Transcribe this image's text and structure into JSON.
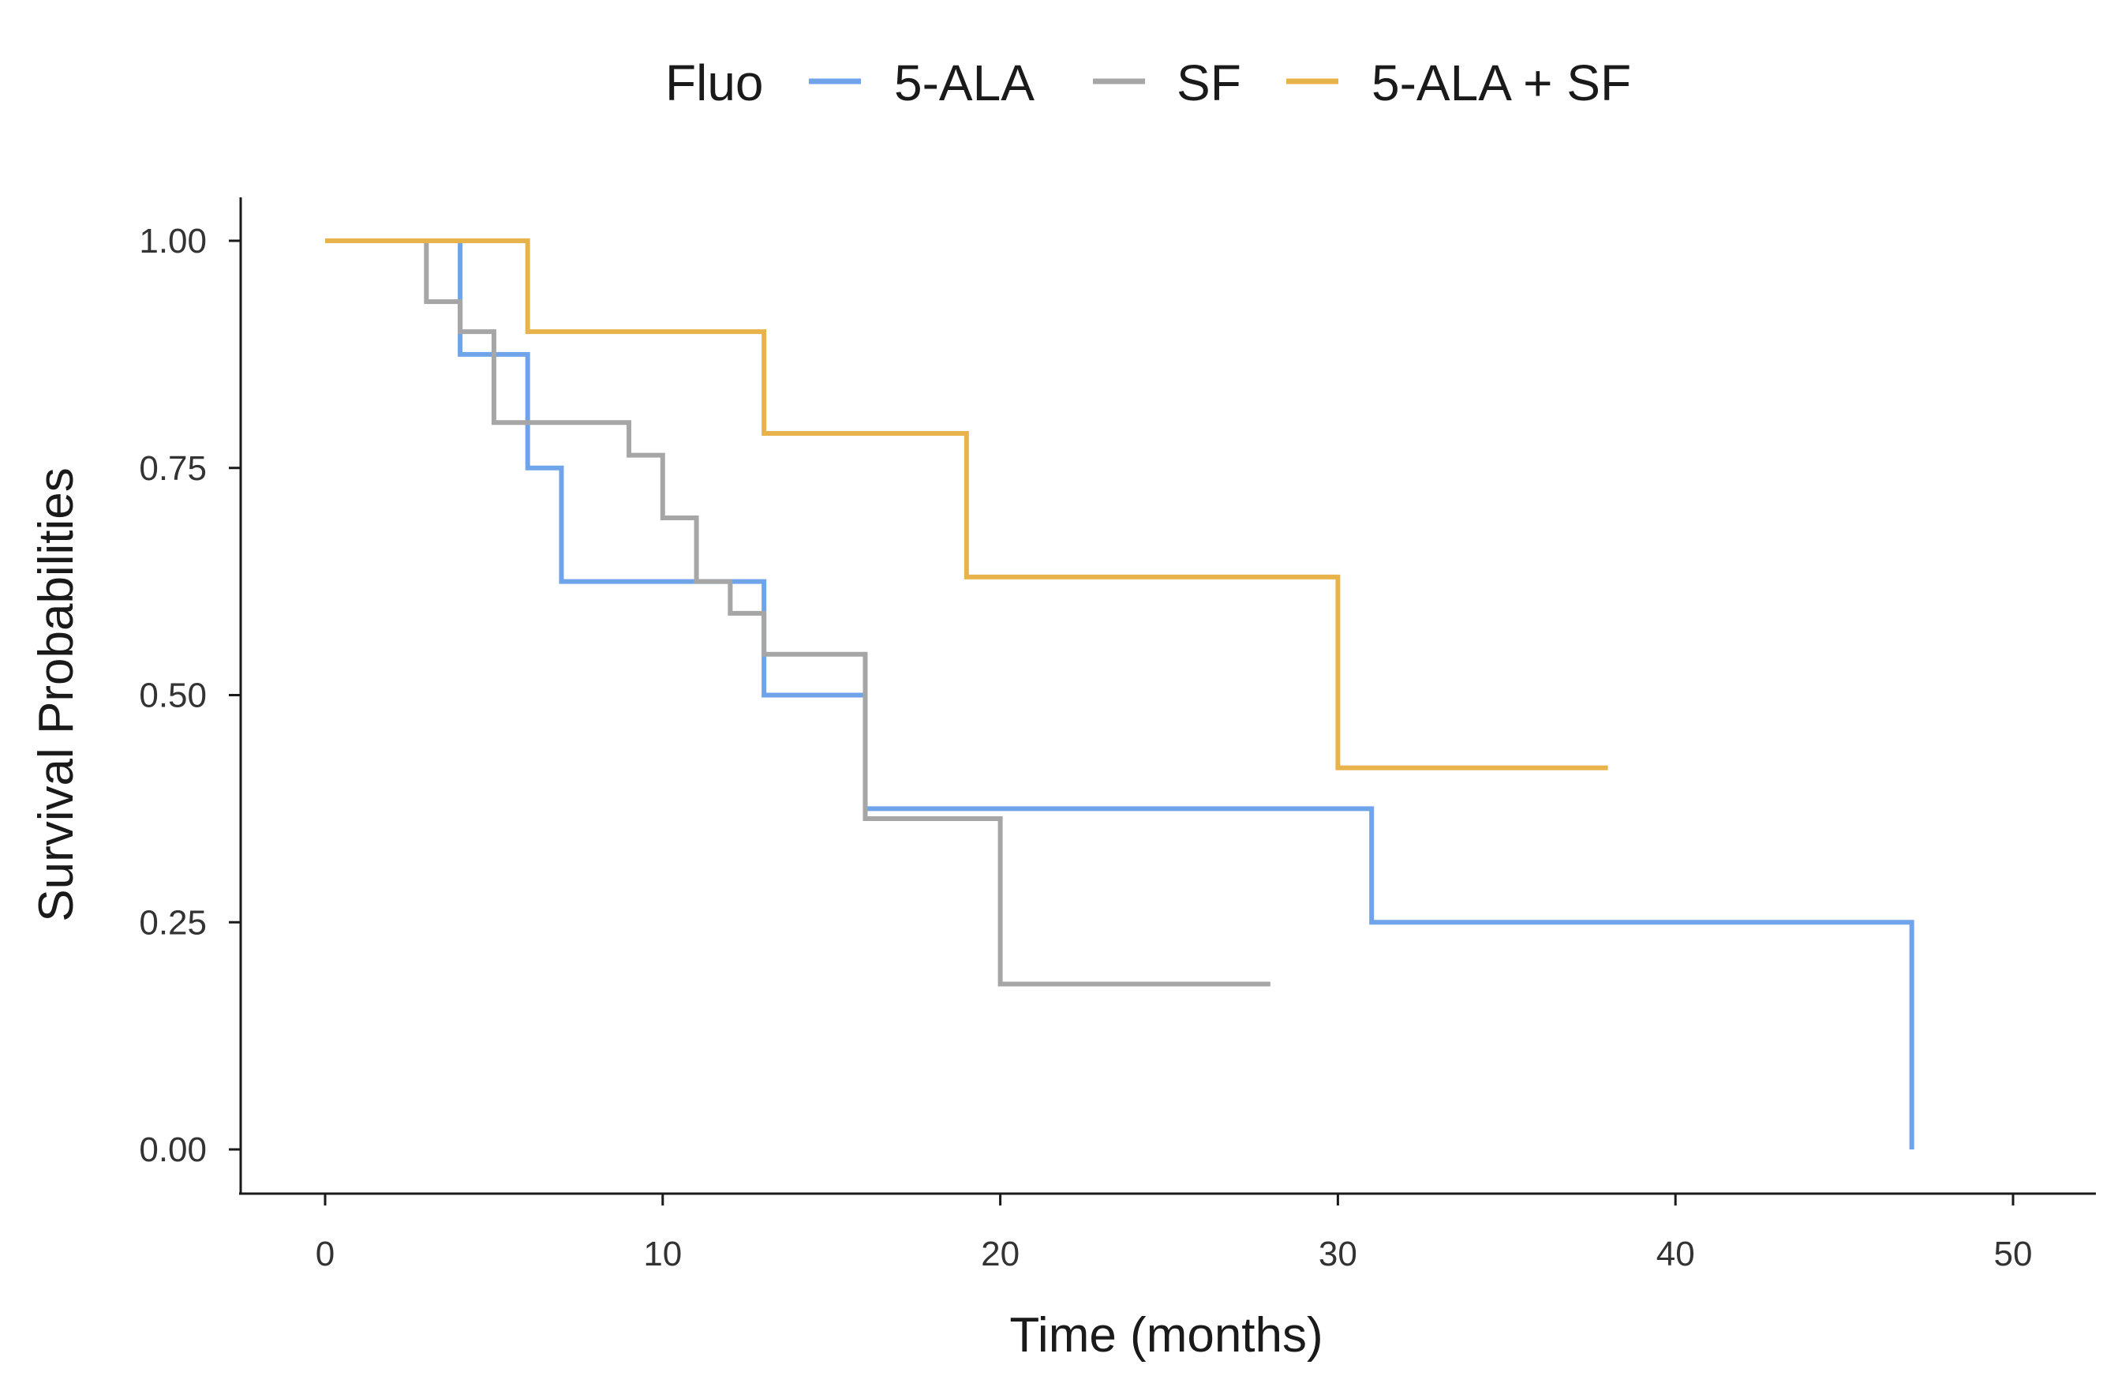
{
  "chart_data": {
    "type": "line",
    "step": true,
    "title": "",
    "xlabel": "Time (months)",
    "ylabel": "Survival Probabilities",
    "xlim": [
      -2.5,
      52.5
    ],
    "ylim": [
      -0.05,
      1.05
    ],
    "x_ticks": [
      0,
      10,
      20,
      30,
      40,
      50
    ],
    "x_tick_labels": [
      "0",
      "10",
      "20",
      "30",
      "40",
      "50"
    ],
    "y_ticks": [
      0,
      0.25,
      0.5,
      0.75,
      1.0
    ],
    "y_tick_labels": [
      "0.00",
      "0.25",
      "0.50",
      "0.75",
      "1.00"
    ],
    "grid": false,
    "legend": {
      "title": "Fluo",
      "position": "top"
    },
    "series": [
      {
        "name": "5-ALA",
        "color": "#6fa3ea",
        "x": [
          0,
          4,
          6,
          7,
          13,
          16,
          31,
          47
        ],
        "y": [
          1.0,
          0.875,
          0.75,
          0.625,
          0.5,
          0.375,
          0.25,
          0.0
        ]
      },
      {
        "name": "SF",
        "color": "#a6a6a6",
        "x": [
          0,
          3,
          4,
          5,
          9,
          10,
          11,
          12,
          13,
          16,
          20,
          28
        ],
        "y": [
          1.0,
          0.933,
          0.9,
          0.8,
          0.764,
          0.695,
          0.625,
          0.59,
          0.545,
          0.364,
          0.182,
          0.182
        ]
      },
      {
        "name": "5-ALA + SF",
        "color": "#e8b34a",
        "x": [
          0,
          6,
          13,
          19,
          30,
          38
        ],
        "y": [
          1.0,
          0.9,
          0.788,
          0.63,
          0.42,
          0.42
        ]
      }
    ]
  }
}
